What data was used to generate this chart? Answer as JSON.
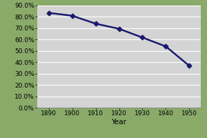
{
  "years": [
    1890,
    1900,
    1910,
    1920,
    1930,
    1940,
    1950
  ],
  "values": [
    0.835,
    0.81,
    0.74,
    0.695,
    0.618,
    0.54,
    0.37
  ],
  "line_color": "#1a1a6e",
  "marker": "D",
  "marker_size": 3.5,
  "background_color": "#d4d4d4",
  "fig_background_color": "#8aaa6a",
  "xlabel": "Year",
  "xlim": [
    1885,
    1955
  ],
  "ylim": [
    0.0,
    0.9
  ],
  "yticks": [
    0.0,
    0.1,
    0.2,
    0.3,
    0.4,
    0.5,
    0.6,
    0.7,
    0.8,
    0.9
  ],
  "xticks": [
    1890,
    1900,
    1910,
    1920,
    1930,
    1940,
    1950
  ],
  "grid_color": "#ffffff",
  "tick_fontsize": 6.5,
  "label_fontsize": 7.5,
  "linewidth": 1.8
}
